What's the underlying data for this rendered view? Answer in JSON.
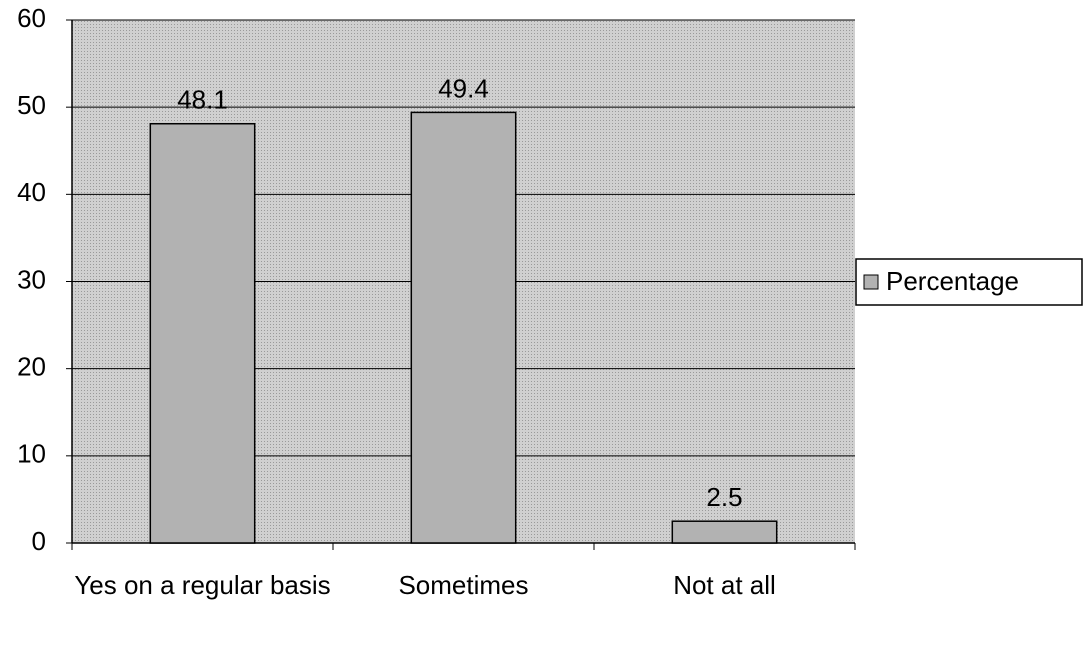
{
  "chart_data": {
    "type": "bar",
    "categories": [
      "Yes on a regular basis",
      "Sometimes",
      "Not at all"
    ],
    "series": [
      {
        "name": "Percentage",
        "color": "#b2b2b2",
        "values": [
          48.1,
          49.4,
          2.5
        ]
      }
    ],
    "ylim": [
      0,
      60
    ],
    "yticks": [
      0,
      10,
      20,
      30,
      40,
      50,
      60
    ],
    "grid": true,
    "legend": "right"
  }
}
